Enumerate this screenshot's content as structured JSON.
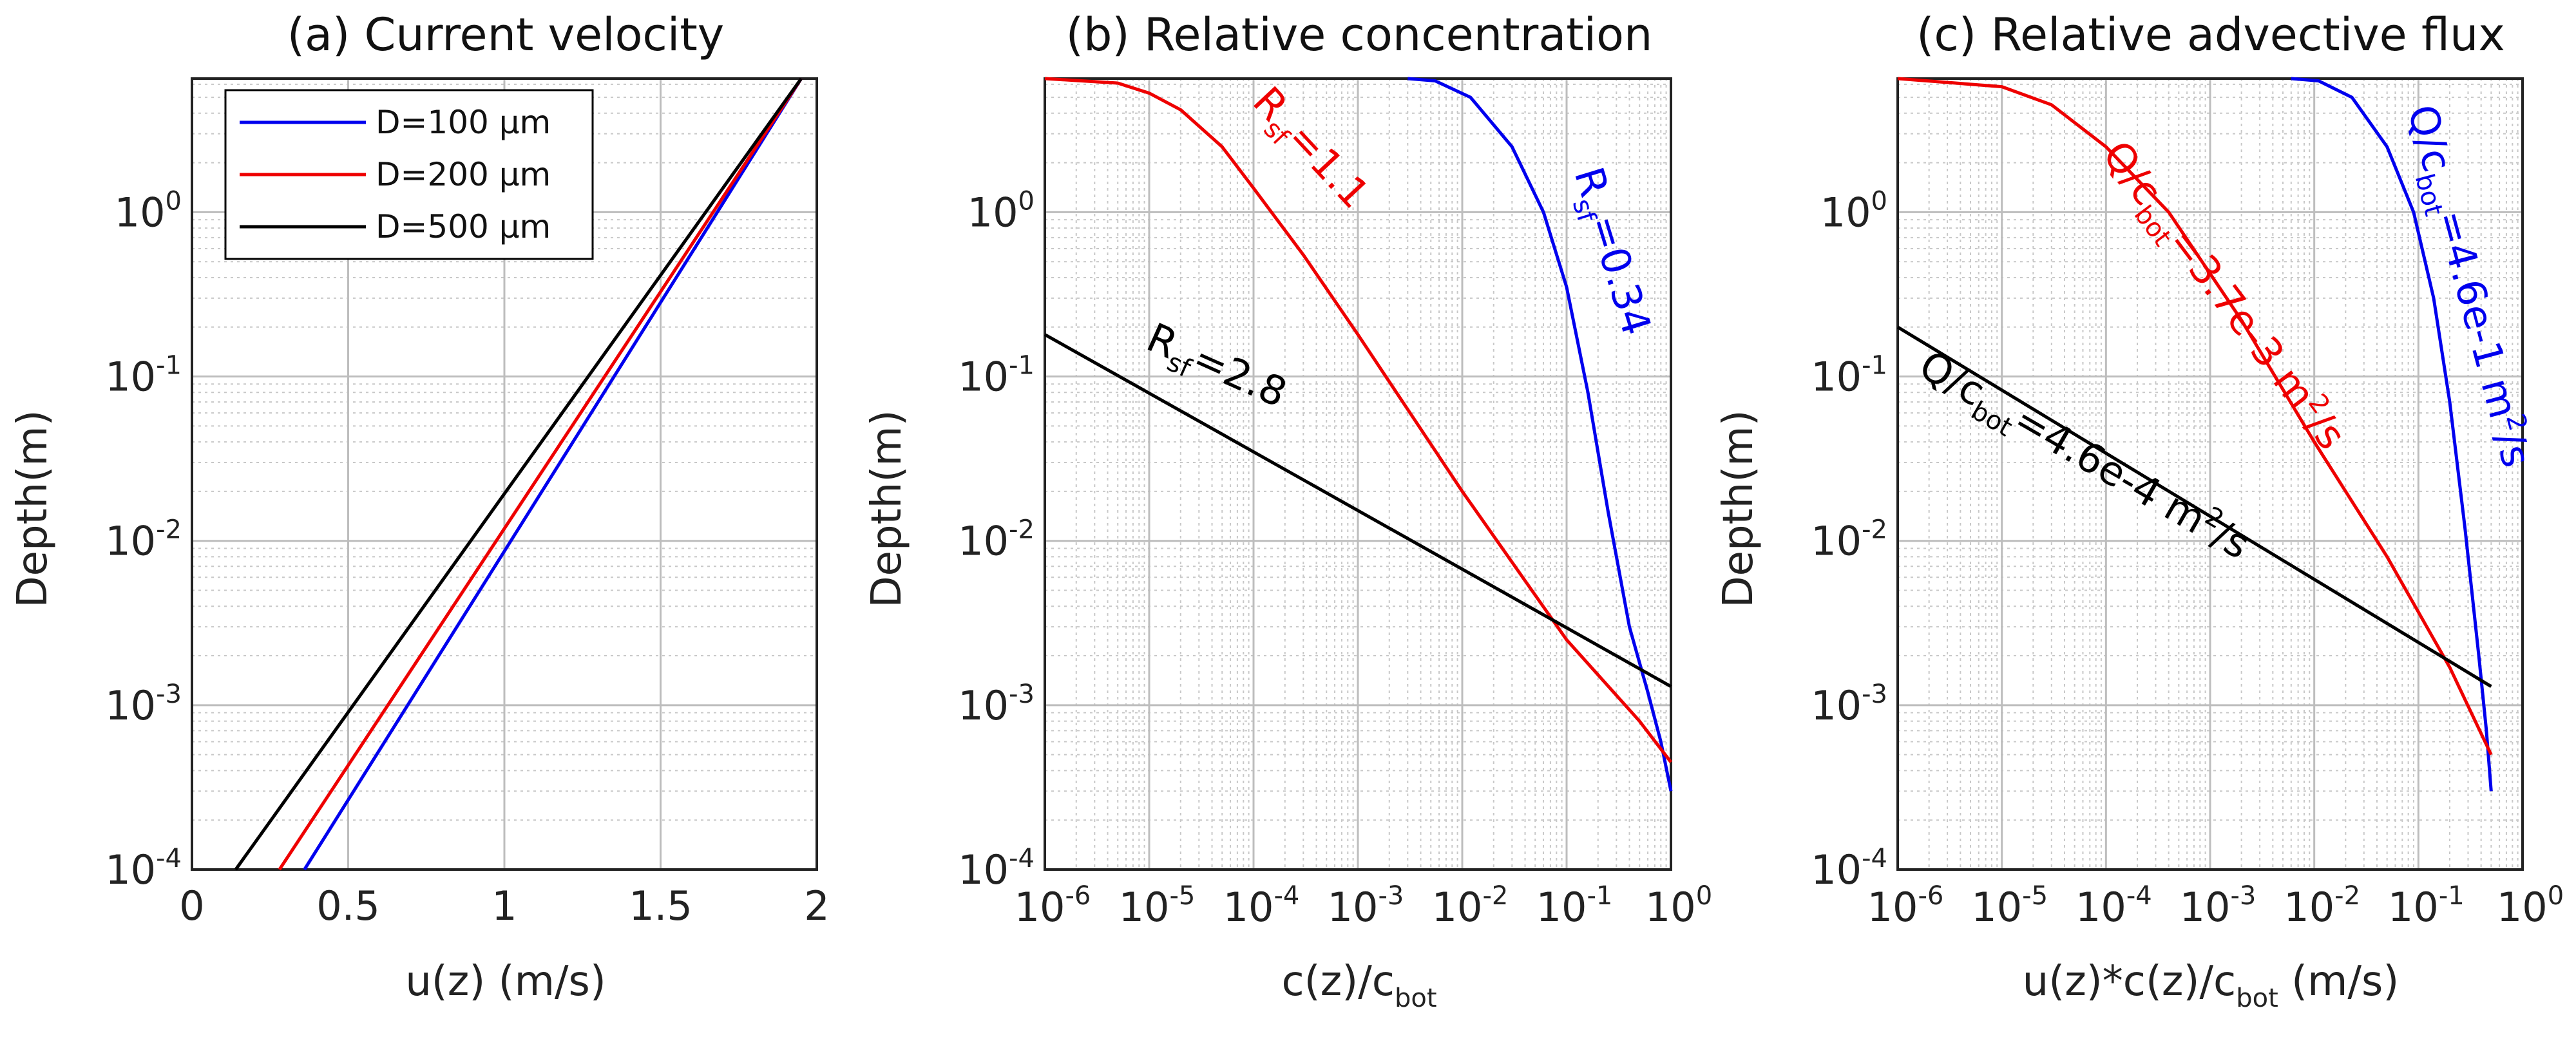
{
  "figure": {
    "panels": [
      {
        "id": "a",
        "title": "(a) Current velocity",
        "xlabel": "u(z) (m/s)",
        "ylabel": "Depth(m)"
      },
      {
        "id": "b",
        "title": "(b) Relative concentration",
        "xlabel_main": "c(z)/c",
        "xlabel_sub": "bot",
        "ylabel": "Depth(m)"
      },
      {
        "id": "c",
        "title": "(c) Relative advective flux",
        "xlabel_main": "u(z)*c(z)/c",
        "xlabel_sub": "bot",
        "xlabel_tail": " (m/s)",
        "ylabel": "Depth(m)"
      }
    ]
  },
  "chart_data": [
    {
      "type": "line",
      "panel": "a",
      "title": "(a) Current velocity",
      "xlabel": "u(z) (m/s)",
      "ylabel": "Depth(m)",
      "xscale": "linear",
      "yscale": "log",
      "xlim": [
        0,
        2
      ],
      "ylim": [
        0.0001,
        6.5
      ],
      "xticks": [
        0,
        0.5,
        1,
        1.5,
        2
      ],
      "xtick_labels": [
        "0",
        "0.5",
        "1",
        "1.5",
        "2"
      ],
      "yticks": [
        0.0001,
        0.001,
        0.01,
        0.1,
        1
      ],
      "ytick_exponents": [
        "-4",
        "-3",
        "-2",
        "-1",
        "0"
      ],
      "grid": true,
      "legend": {
        "position": "top-left",
        "entries": [
          "D=100 μm",
          "D=200 μm",
          "D=500 μm"
        ]
      },
      "series": [
        {
          "name": "D=100 μm",
          "color": "#0000ee",
          "x": [
            0.36,
            1.95
          ],
          "y": [
            0.0001,
            6.5
          ]
        },
        {
          "name": "D=200 μm",
          "color": "#ee0000",
          "x": [
            0.28,
            1.95
          ],
          "y": [
            0.0001,
            6.5
          ]
        },
        {
          "name": "D=500 μm",
          "color": "#000000",
          "x": [
            0.14,
            1.95
          ],
          "y": [
            0.0001,
            6.5
          ]
        }
      ]
    },
    {
      "type": "line",
      "panel": "b",
      "title": "(b) Relative concentration",
      "xlabel": "c(z)/c_bot",
      "ylabel": "Depth(m)",
      "xscale": "log",
      "yscale": "log",
      "xlim": [
        1e-06,
        1
      ],
      "ylim": [
        0.0001,
        6.5
      ],
      "xticks": [
        1e-06,
        1e-05,
        0.0001,
        0.001,
        0.01,
        0.1,
        1
      ],
      "xtick_exponents": [
        "-6",
        "-5",
        "-4",
        "-3",
        "-2",
        "-1",
        "0"
      ],
      "yticks": [
        0.0001,
        0.001,
        0.01,
        0.1,
        1
      ],
      "ytick_exponents": [
        "-4",
        "-3",
        "-2",
        "-1",
        "0"
      ],
      "grid": true,
      "series": [
        {
          "name": "R_sf=0.34",
          "color": "#0000ee",
          "x": [
            0.003,
            0.0055,
            0.012,
            0.03,
            0.06,
            0.1,
            0.16,
            0.25,
            0.4,
            0.6,
            0.8,
            1.0
          ],
          "y": [
            6.5,
            6.3,
            5.0,
            2.5,
            1.0,
            0.35,
            0.08,
            0.015,
            0.003,
            0.0012,
            0.0006,
            0.0003
          ]
        },
        {
          "name": "R_sf=1.1",
          "color": "#ee0000",
          "x": [
            1e-06,
            5e-06,
            1e-05,
            2e-05,
            5e-05,
            0.0001,
            0.0003,
            0.001,
            0.01,
            0.1,
            0.5,
            1.0
          ],
          "y": [
            6.5,
            6.1,
            5.3,
            4.2,
            2.5,
            1.4,
            0.55,
            0.18,
            0.02,
            0.0025,
            0.0008,
            0.00045
          ]
        },
        {
          "name": "R_sf=2.8",
          "color": "#000000",
          "x": [
            1e-06,
            1.0
          ],
          "y": [
            0.18,
            0.0013
          ]
        }
      ],
      "annotations": [
        {
          "main": "R",
          "sub": "sf",
          "tail": "=0.34",
          "color": "#0000ee"
        },
        {
          "main": "R",
          "sub": "sf",
          "tail": "=1.1",
          "color": "#ee0000"
        },
        {
          "main": "R",
          "sub": "sf",
          "tail": "=2.8",
          "color": "#000000"
        }
      ]
    },
    {
      "type": "line",
      "panel": "c",
      "title": "(c) Relative advective flux",
      "xlabel": "u(z)*c(z)/c_bot (m/s)",
      "ylabel": "Depth(m)",
      "xscale": "log",
      "yscale": "log",
      "xlim": [
        1e-06,
        1
      ],
      "ylim": [
        0.0001,
        6.5
      ],
      "xticks": [
        1e-06,
        1e-05,
        0.0001,
        0.001,
        0.01,
        0.1,
        1
      ],
      "xtick_exponents": [
        "-6",
        "-5",
        "-4",
        "-3",
        "-2",
        "-1",
        "0"
      ],
      "yticks": [
        0.0001,
        0.001,
        0.01,
        0.1,
        1
      ],
      "ytick_exponents": [
        "-4",
        "-3",
        "-2",
        "-1",
        "0"
      ],
      "grid": true,
      "series": [
        {
          "name": "Q/c_bot=4.6e-1 m2/s",
          "color": "#0000ee",
          "x": [
            0.006,
            0.011,
            0.023,
            0.05,
            0.09,
            0.14,
            0.2,
            0.28,
            0.38,
            0.45,
            0.5
          ],
          "y": [
            6.5,
            6.3,
            5.0,
            2.5,
            1.0,
            0.3,
            0.07,
            0.012,
            0.002,
            0.0007,
            0.0003
          ]
        },
        {
          "name": "Q/c_bot=3.7e-3 m2/s",
          "color": "#ee0000",
          "x": [
            1e-06,
            1e-05,
            3e-05,
            0.0001,
            0.0004,
            0.002,
            0.01,
            0.05,
            0.2,
            0.5
          ],
          "y": [
            6.5,
            5.8,
            4.5,
            2.5,
            1.0,
            0.22,
            0.04,
            0.008,
            0.0017,
            0.0005
          ]
        },
        {
          "name": "Q/c_bot=4.6e-4 m2/s",
          "color": "#000000",
          "x": [
            1e-06,
            0.5
          ],
          "y": [
            0.2,
            0.0013
          ]
        }
      ],
      "annotations": [
        {
          "main": "Q/c",
          "sub": "bot",
          "tail": "=4.6e-1 m",
          "sup": "2",
          "tail2": "/s",
          "color": "#0000ee"
        },
        {
          "main": "Q/c",
          "sub": "bot",
          "tail": "=3.7e-3 m",
          "sup": "2",
          "tail2": "/s",
          "color": "#ee0000"
        },
        {
          "main": "Q/c",
          "sub": "bot",
          "tail": "=4.6e-4 m",
          "sup": "2",
          "tail2": "/s",
          "color": "#000000"
        }
      ]
    }
  ]
}
